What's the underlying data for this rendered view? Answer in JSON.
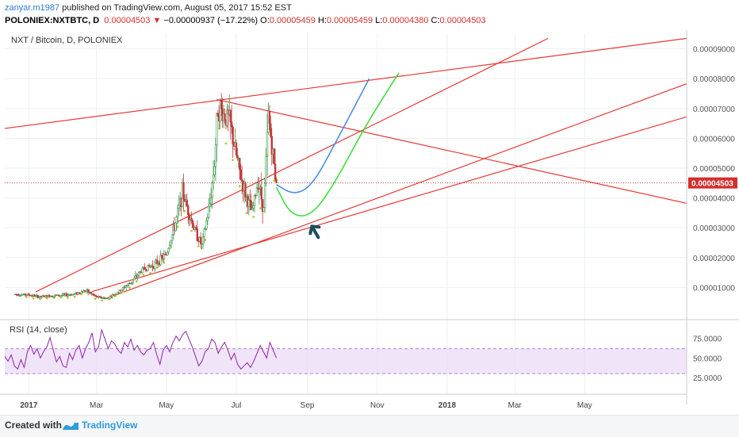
{
  "header": {
    "author": "zanyar.m1987",
    "published": "published on TradingView.com, August 05, 2017 15:52 EST",
    "symbol": "POLONIEX:NXTBTC, D",
    "price": "0.00004503",
    "change_arrow": "▼",
    "change": "−0.00000937 (−17.22%)",
    "o_label": "O:",
    "o_value": "0.00005459",
    "h_label": "H:",
    "h_value": "0.00005459",
    "l_label": "L:",
    "l_value": "0.00004380",
    "c_label": "C:",
    "c_value": "0.00004503"
  },
  "chart_data": {
    "type": "line",
    "title": "NXT / Bitcoin, D, POLONIEX",
    "x_ticks": [
      "2017",
      "Mar",
      "May",
      "Jul",
      "Sep",
      "Nov",
      "2018",
      "Mar",
      "May"
    ],
    "y_ticks": [
      "0.00001000",
      "0.00002000",
      "0.00003000",
      "0.00004000",
      "0.00005000",
      "0.00006000",
      "0.00007000",
      "0.00008000",
      "0.00009000"
    ],
    "ylim": [
      0.0,
      9.52e-05
    ],
    "current_price_label": "0.00004503",
    "current_price": 4.503e-05,
    "price_series": {
      "name": "NXTBTC daily",
      "points": [
        [
          "2016-12-20",
          7.7e-06
        ],
        [
          "2017-01-01",
          7.5e-06
        ],
        [
          "2017-01-10",
          6.8e-06
        ],
        [
          "2017-01-20",
          7.2e-06
        ],
        [
          "2017-02-01",
          7.4e-06
        ],
        [
          "2017-02-10",
          7.8e-06
        ],
        [
          "2017-02-20",
          9e-06
        ],
        [
          "2017-03-01",
          6.8e-06
        ],
        [
          "2017-03-10",
          6.3e-06
        ],
        [
          "2017-03-20",
          8.4e-06
        ],
        [
          "2017-04-01",
          1.2e-05
        ],
        [
          "2017-04-10",
          1.6e-05
        ],
        [
          "2017-04-20",
          1.75e-05
        ],
        [
          "2017-05-01",
          2.1e-05
        ],
        [
          "2017-05-10",
          3.3e-05
        ],
        [
          "2017-05-15",
          4.2e-05
        ],
        [
          "2017-05-20",
          3.6e-05
        ],
        [
          "2017-05-25",
          3e-05
        ],
        [
          "2017-06-01",
          2.4e-05
        ],
        [
          "2017-06-08",
          3.8e-05
        ],
        [
          "2017-06-12",
          5.2e-05
        ],
        [
          "2017-06-15",
          7.1e-05
        ],
        [
          "2017-06-20",
          6.8e-05
        ],
        [
          "2017-06-25",
          6.6e-05
        ],
        [
          "2017-06-30",
          5.6e-05
        ],
        [
          "2017-07-05",
          4.7e-05
        ],
        [
          "2017-07-10",
          4e-05
        ],
        [
          "2017-07-15",
          3.5e-05
        ],
        [
          "2017-07-20",
          4.6e-05
        ],
        [
          "2017-07-25",
          3.6e-05
        ],
        [
          "2017-07-29",
          6.8e-05
        ],
        [
          "2017-08-02",
          5.4e-05
        ],
        [
          "2017-08-05",
          4.503e-05
        ]
      ]
    },
    "trend_lines": [
      {
        "name": "upper channel",
        "color": "#e53935",
        "from": [
          "2016-12-11",
          6.33e-05
        ],
        "to": [
          "2018-07-29",
          9.35e-05
        ]
      },
      {
        "name": "descending resistance",
        "color": "#e53935",
        "from": [
          "2017-06-14",
          7.3e-05
        ],
        "to": [
          "2018-07-29",
          3.82e-05
        ]
      },
      {
        "name": "support 1",
        "color": "#e53935",
        "from": [
          "2017-03-11",
          6.5e-06
        ],
        "to": [
          "2018-07-29",
          7.83e-05
        ]
      },
      {
        "name": "support 2",
        "color": "#e53935",
        "from": [
          "2017-02-25",
          8.6e-06
        ],
        "to": [
          "2018-07-29",
          6.72e-05
        ]
      },
      {
        "name": "support 3",
        "color": "#e53935",
        "from": [
          "2017-01-07",
          8.5e-06
        ],
        "to": [
          "2018-03-30",
          9.35e-05
        ]
      }
    ],
    "projections": [
      {
        "name": "blue curve",
        "color": "#4a8fe0",
        "points": [
          [
            "2017-08-05",
            4.45e-05
          ],
          [
            "2017-08-20",
            4.1e-05
          ],
          [
            "2017-09-05",
            4.4e-05
          ],
          [
            "2017-09-25",
            5.8e-05
          ],
          [
            "2017-10-25",
            8e-05
          ]
        ]
      },
      {
        "name": "green curve",
        "color": "#3de03d",
        "points": [
          [
            "2017-08-05",
            4.35e-05
          ],
          [
            "2017-08-18",
            3.4e-05
          ],
          [
            "2017-09-05",
            3.4e-05
          ],
          [
            "2017-09-25",
            4.5e-05
          ],
          [
            "2017-10-20",
            6.3e-05
          ],
          [
            "2017-11-10",
            7.6e-05
          ],
          [
            "2017-11-20",
            8.2e-05
          ]
        ]
      }
    ],
    "rsi": {
      "title": "RSI (14, close)",
      "y_ticks": [
        "25.0000",
        "50.0000",
        "75.0000"
      ],
      "ylim": [
        17,
        96
      ],
      "band": [
        30,
        62
      ],
      "band_color": "#e9d8f7",
      "line_color": "#8e24aa",
      "values": [
        52,
        46,
        54,
        40,
        36,
        48,
        38,
        58,
        66,
        55,
        62,
        50,
        58,
        64,
        76,
        60,
        45,
        52,
        40,
        38,
        56,
        48,
        60,
        66,
        50,
        62,
        70,
        82,
        58,
        64,
        86,
        74,
        62,
        72,
        68,
        60,
        56,
        70,
        64,
        74,
        60,
        66,
        58,
        54,
        60,
        62,
        70,
        54,
        42,
        60,
        66,
        58,
        70,
        78,
        72,
        80,
        84,
        74,
        64,
        52,
        40,
        46,
        58,
        62,
        74,
        70,
        56,
        64,
        70,
        60,
        48,
        56,
        42,
        36,
        40,
        44,
        38,
        46,
        56,
        66,
        58,
        50,
        70,
        60,
        50
      ]
    }
  },
  "footer": {
    "created_with": "Created with",
    "brand": "TradingView"
  }
}
